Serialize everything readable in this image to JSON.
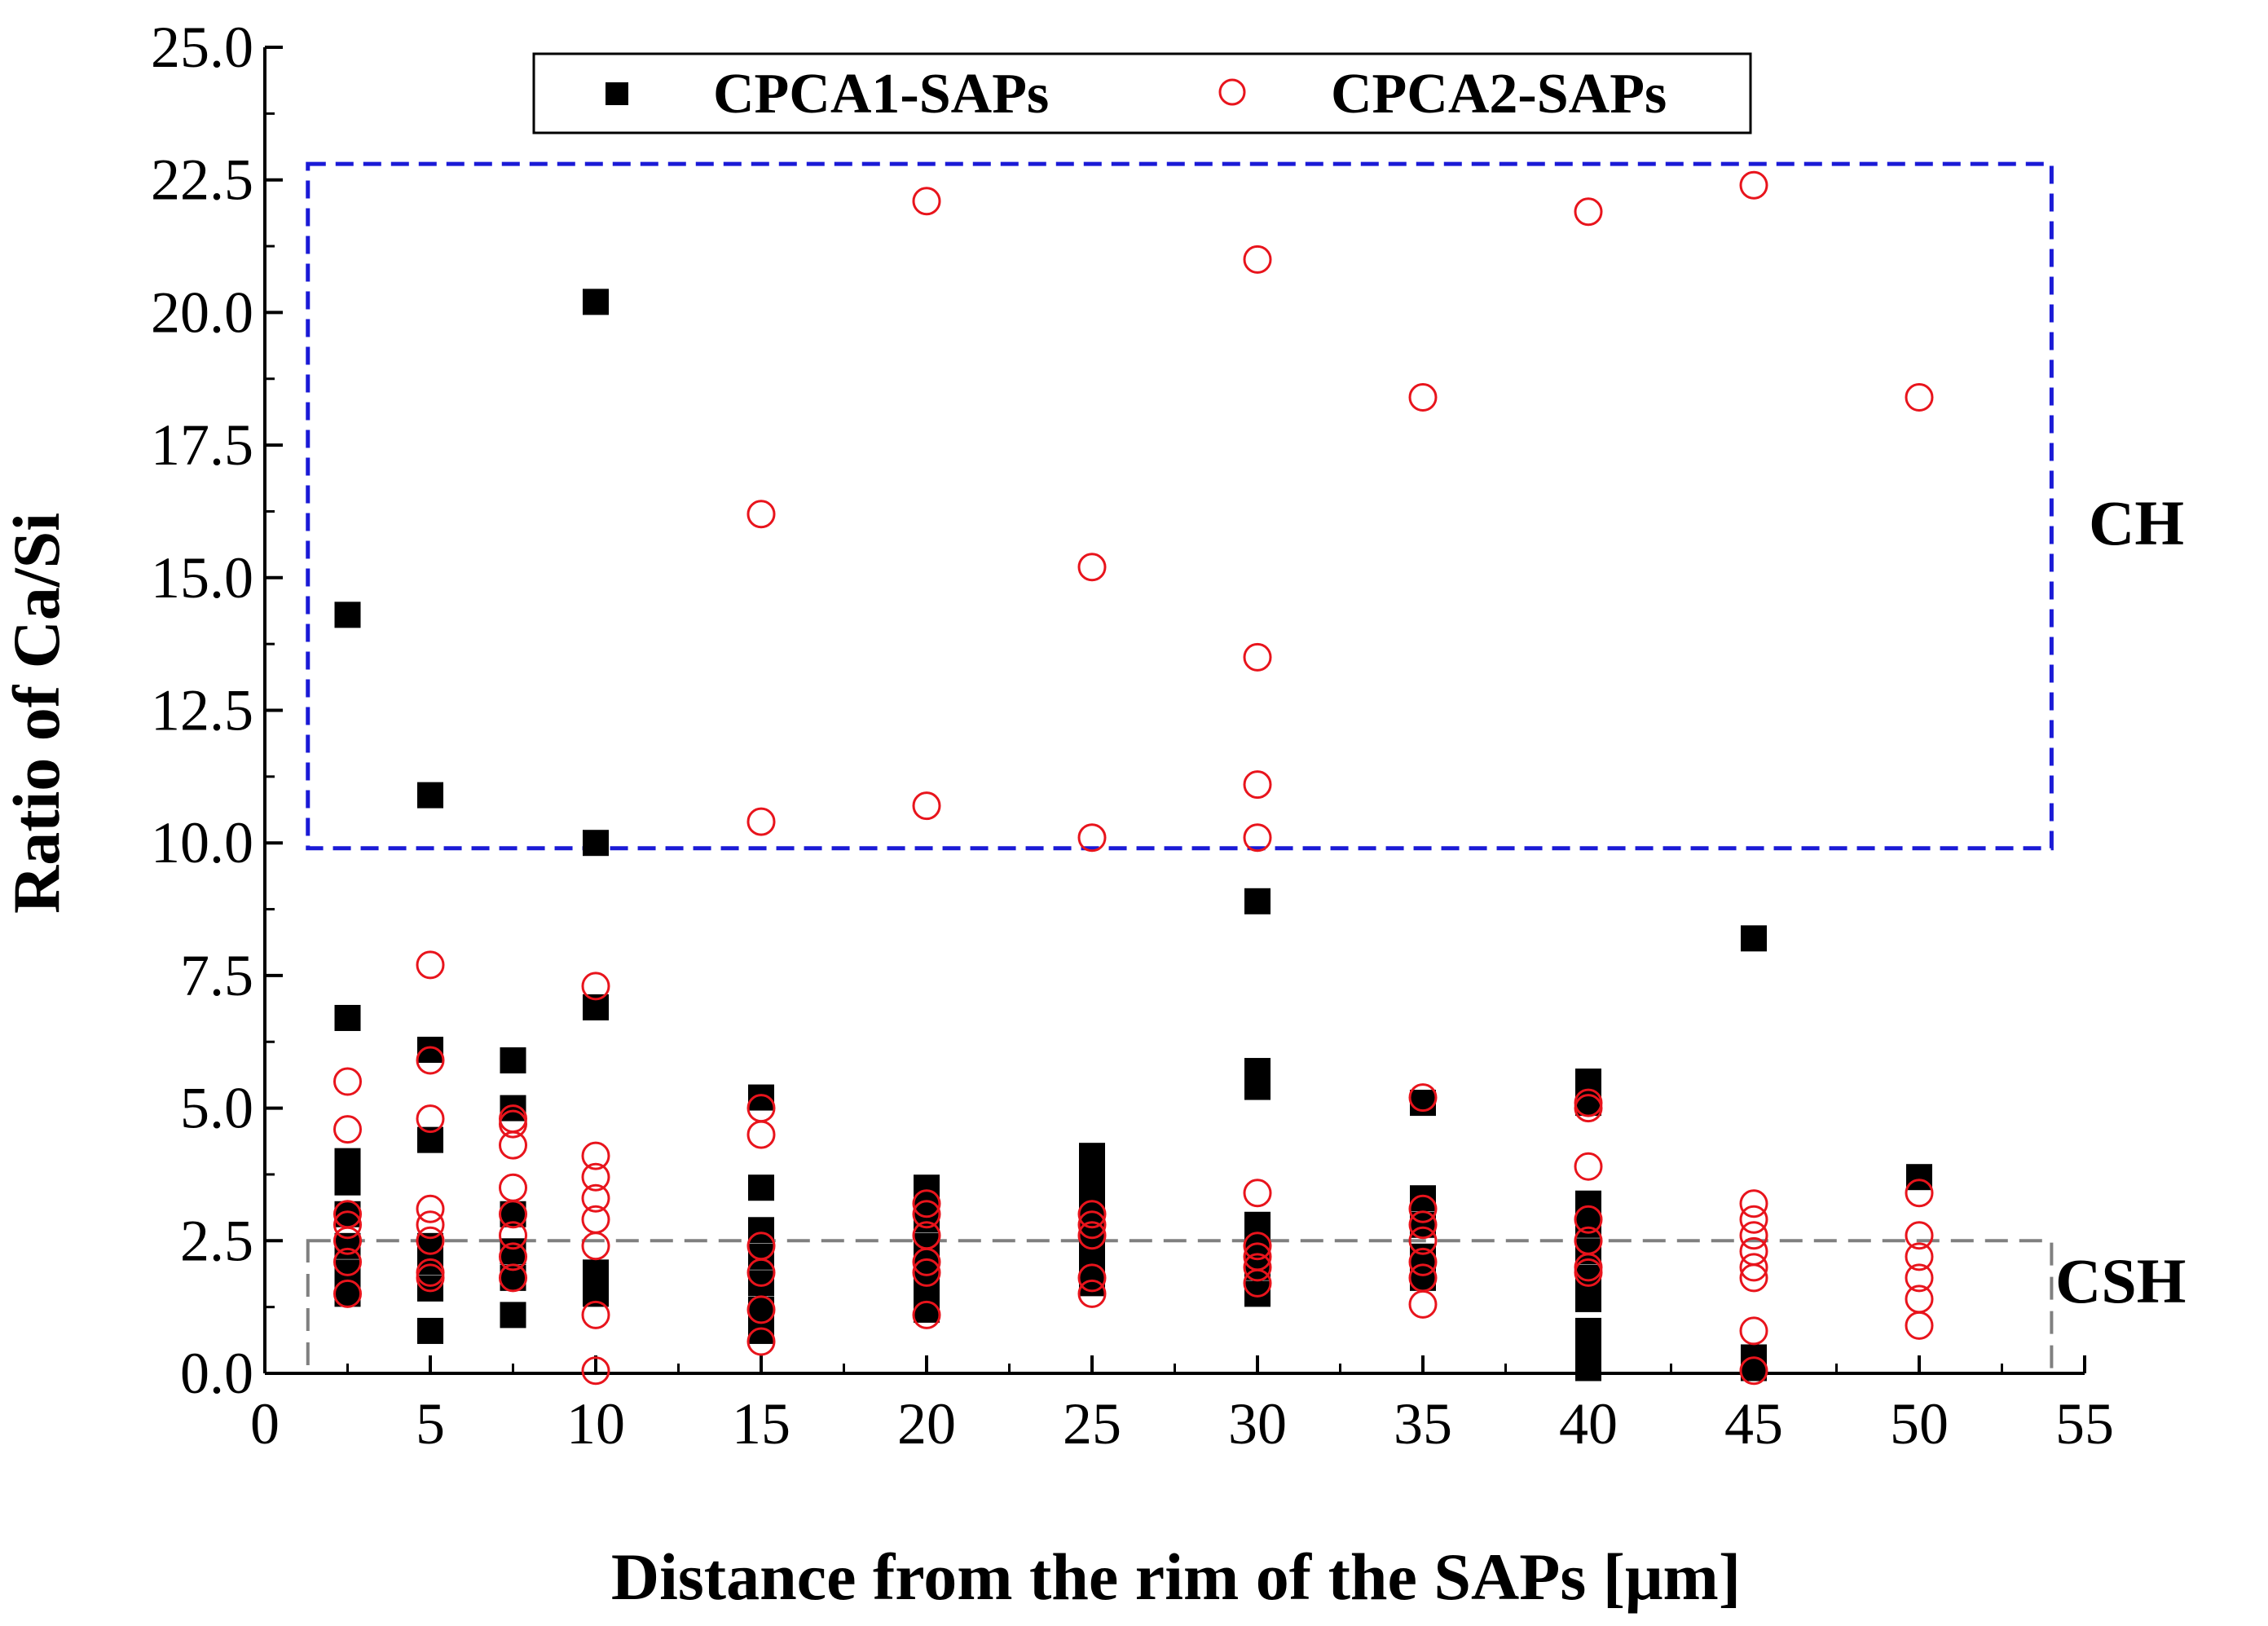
{
  "chart_data": {
    "type": "scatter",
    "title": "",
    "xlabel": "Distance from the rim of the SAPs [μm]",
    "ylabel": "Ratio of Ca/Si",
    "xlim": [
      0,
      55
    ],
    "ylim": [
      0,
      25
    ],
    "x_ticks": [
      "0",
      "5",
      "10",
      "15",
      "20",
      "25",
      "30",
      "35",
      "40",
      "45",
      "50",
      "55"
    ],
    "y_ticks": [
      "0.0",
      "2.5",
      "5.0",
      "7.5",
      "10.0",
      "12.5",
      "15.0",
      "17.5",
      "20.0",
      "22.5",
      "25.0"
    ],
    "legend_position": "top-center",
    "series": [
      {
        "name": "CPCA1-SAPs",
        "marker": "filled-square",
        "color": "#000000",
        "points": [
          [
            2.5,
            14.3
          ],
          [
            2.5,
            6.7
          ],
          [
            2.5,
            4.0
          ],
          [
            2.5,
            3.6
          ],
          [
            2.5,
            3.0
          ],
          [
            2.5,
            2.4
          ],
          [
            2.5,
            1.9
          ],
          [
            2.5,
            1.5
          ],
          [
            5,
            10.9
          ],
          [
            5,
            6.1
          ],
          [
            5,
            4.4
          ],
          [
            5,
            2.4
          ],
          [
            5,
            2.1
          ],
          [
            5,
            1.6
          ],
          [
            5,
            0.8
          ],
          [
            7.5,
            5.9
          ],
          [
            7.5,
            5.0
          ],
          [
            7.5,
            3.0
          ],
          [
            7.5,
            2.3
          ],
          [
            7.5,
            1.8
          ],
          [
            7.5,
            1.1
          ],
          [
            10,
            20.2
          ],
          [
            10,
            10.0
          ],
          [
            10,
            6.9
          ],
          [
            10,
            1.9
          ],
          [
            10,
            1.5
          ],
          [
            15,
            5.2
          ],
          [
            15,
            3.5
          ],
          [
            15,
            2.7
          ],
          [
            15,
            2.2
          ],
          [
            15,
            1.7
          ],
          [
            15,
            1.2
          ],
          [
            15,
            0.8
          ],
          [
            20,
            3.5
          ],
          [
            20,
            3.2
          ],
          [
            20,
            2.9
          ],
          [
            20,
            2.4
          ],
          [
            20,
            2.0
          ],
          [
            20,
            1.6
          ],
          [
            20,
            1.2
          ],
          [
            25,
            4.1
          ],
          [
            25,
            3.7
          ],
          [
            25,
            3.3
          ],
          [
            25,
            2.9
          ],
          [
            25,
            2.5
          ],
          [
            25,
            2.1
          ],
          [
            25,
            1.7
          ],
          [
            30,
            8.9
          ],
          [
            30,
            5.7
          ],
          [
            30,
            5.4
          ],
          [
            30,
            2.8
          ],
          [
            30,
            2.4
          ],
          [
            30,
            2.0
          ],
          [
            30,
            1.5
          ],
          [
            35,
            5.1
          ],
          [
            35,
            3.3
          ],
          [
            35,
            2.8
          ],
          [
            35,
            2.2
          ],
          [
            35,
            1.8
          ],
          [
            40,
            5.5
          ],
          [
            40,
            5.1
          ],
          [
            40,
            3.2
          ],
          [
            40,
            2.8
          ],
          [
            40,
            2.3
          ],
          [
            40,
            1.8
          ],
          [
            40,
            1.4
          ],
          [
            40,
            0.8
          ],
          [
            40,
            0.4
          ],
          [
            40,
            0.1
          ],
          [
            45,
            8.2
          ],
          [
            45,
            0.3
          ],
          [
            45,
            0.1
          ],
          [
            50,
            3.7
          ]
        ]
      },
      {
        "name": "CPCA2-SAPs",
        "marker": "open-circle",
        "color": "#e8141c",
        "points": [
          [
            2.5,
            5.5
          ],
          [
            2.5,
            4.6
          ],
          [
            2.5,
            3.0
          ],
          [
            2.5,
            2.8
          ],
          [
            2.5,
            2.5
          ],
          [
            2.5,
            2.1
          ],
          [
            2.5,
            1.5
          ],
          [
            5,
            7.7
          ],
          [
            5,
            5.9
          ],
          [
            5,
            4.8
          ],
          [
            5,
            3.1
          ],
          [
            5,
            2.8
          ],
          [
            5,
            2.5
          ],
          [
            5,
            1.9
          ],
          [
            5,
            1.8
          ],
          [
            7.5,
            4.8
          ],
          [
            7.5,
            4.7
          ],
          [
            7.5,
            4.3
          ],
          [
            7.5,
            3.5
          ],
          [
            7.5,
            3.0
          ],
          [
            7.5,
            2.6
          ],
          [
            7.5,
            2.2
          ],
          [
            7.5,
            1.8
          ],
          [
            10,
            7.3
          ],
          [
            10,
            4.1
          ],
          [
            10,
            3.7
          ],
          [
            10,
            3.3
          ],
          [
            10,
            2.9
          ],
          [
            10,
            2.4
          ],
          [
            10,
            1.1
          ],
          [
            10,
            0.05
          ],
          [
            15,
            16.2
          ],
          [
            15,
            10.4
          ],
          [
            15,
            5.0
          ],
          [
            15,
            4.5
          ],
          [
            15,
            2.4
          ],
          [
            15,
            1.9
          ],
          [
            15,
            1.2
          ],
          [
            15,
            0.6
          ],
          [
            20,
            22.1
          ],
          [
            20,
            10.7
          ],
          [
            20,
            3.2
          ],
          [
            20,
            3.0
          ],
          [
            20,
            2.6
          ],
          [
            20,
            2.1
          ],
          [
            20,
            1.9
          ],
          [
            20,
            1.1
          ],
          [
            25,
            15.2
          ],
          [
            25,
            10.1
          ],
          [
            25,
            3.0
          ],
          [
            25,
            2.8
          ],
          [
            25,
            2.6
          ],
          [
            25,
            1.8
          ],
          [
            25,
            1.5
          ],
          [
            30,
            21.0
          ],
          [
            30,
            13.5
          ],
          [
            30,
            11.1
          ],
          [
            30,
            10.1
          ],
          [
            30,
            3.4
          ],
          [
            30,
            2.4
          ],
          [
            30,
            2.2
          ],
          [
            30,
            2.0
          ],
          [
            30,
            1.7
          ],
          [
            35,
            18.4
          ],
          [
            35,
            5.2
          ],
          [
            35,
            3.1
          ],
          [
            35,
            2.8
          ],
          [
            35,
            2.5
          ],
          [
            35,
            2.1
          ],
          [
            35,
            1.8
          ],
          [
            35,
            1.3
          ],
          [
            40,
            21.9
          ],
          [
            40,
            5.1
          ],
          [
            40,
            5.0
          ],
          [
            40,
            3.9
          ],
          [
            40,
            2.9
          ],
          [
            40,
            2.5
          ],
          [
            40,
            2.0
          ],
          [
            40,
            1.9
          ],
          [
            45,
            22.4
          ],
          [
            45,
            3.2
          ],
          [
            45,
            2.9
          ],
          [
            45,
            2.6
          ],
          [
            45,
            2.3
          ],
          [
            45,
            2.0
          ],
          [
            45,
            1.8
          ],
          [
            45,
            0.8
          ],
          [
            45,
            0.05
          ],
          [
            50,
            18.4
          ],
          [
            50,
            3.4
          ],
          [
            50,
            2.6
          ],
          [
            50,
            2.2
          ],
          [
            50,
            1.8
          ],
          [
            50,
            1.4
          ],
          [
            50,
            0.9
          ]
        ]
      }
    ],
    "regions": [
      {
        "label": "CH",
        "x_range": [
          1.3,
          54
        ],
        "y_range": [
          9.9,
          22.8
        ],
        "color": "#1a1ad6",
        "style": "dashed"
      },
      {
        "label": "CSH",
        "x_range": [
          1.3,
          54
        ],
        "y_range": [
          0,
          2.5
        ],
        "color": "#808080",
        "style": "dashed"
      }
    ]
  }
}
